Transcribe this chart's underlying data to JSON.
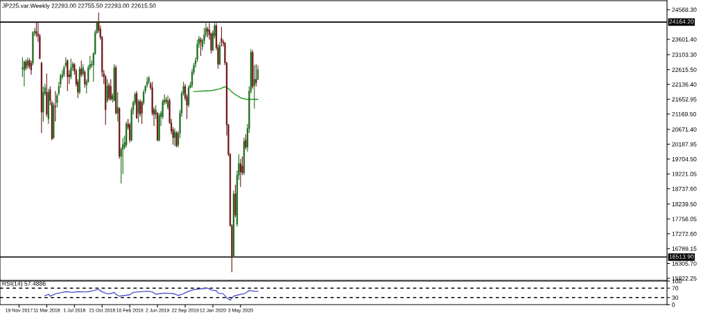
{
  "chart_data": [
    {
      "type": "candlestick",
      "title": "JP225.var.Weekly 22293.00 22755.50 22293.00 22615.50",
      "x": [
        "2017-12-03",
        "2017-12-10",
        "2017-12-17",
        "2017-12-24",
        "2017-12-31",
        "2018-01-07",
        "2018-01-14",
        "2018-01-21",
        "2018-01-28",
        "2018-02-04",
        "2018-02-11",
        "2018-02-18",
        "2018-02-25",
        "2018-03-04",
        "2018-03-11",
        "2018-03-18",
        "2018-03-25",
        "2018-04-01",
        "2018-04-08",
        "2018-04-15",
        "2018-04-22",
        "2018-04-29",
        "2018-05-06",
        "2018-05-13",
        "2018-05-20",
        "2018-05-27",
        "2018-06-03",
        "2018-06-10",
        "2018-06-17",
        "2018-06-24",
        "2018-07-01",
        "2018-07-08",
        "2018-07-15",
        "2018-07-22",
        "2018-07-29",
        "2018-08-05",
        "2018-08-12",
        "2018-08-19",
        "2018-08-26",
        "2018-09-02",
        "2018-09-09",
        "2018-09-16",
        "2018-09-23",
        "2018-09-30",
        "2018-10-07",
        "2018-10-14",
        "2018-10-21",
        "2018-10-28",
        "2018-11-04",
        "2018-11-11",
        "2018-11-18",
        "2018-11-25",
        "2018-12-02",
        "2018-12-09",
        "2018-12-16",
        "2018-12-23",
        "2018-12-30",
        "2019-01-06",
        "2019-01-13",
        "2019-01-20",
        "2019-01-27",
        "2019-02-03",
        "2019-02-10",
        "2019-02-17",
        "2019-02-24",
        "2019-03-03",
        "2019-03-10",
        "2019-03-17",
        "2019-03-24",
        "2019-03-31",
        "2019-04-07",
        "2019-04-14",
        "2019-04-21",
        "2019-04-28",
        "2019-05-05",
        "2019-05-12",
        "2019-05-19",
        "2019-05-26",
        "2019-06-02",
        "2019-06-09",
        "2019-06-16",
        "2019-06-23",
        "2019-06-30",
        "2019-07-07",
        "2019-07-14",
        "2019-07-21",
        "2019-07-28",
        "2019-08-04",
        "2019-08-11",
        "2019-08-18",
        "2019-08-25",
        "2019-09-01",
        "2019-09-08",
        "2019-09-15",
        "2019-09-22",
        "2019-09-29",
        "2019-10-06",
        "2019-10-13",
        "2019-10-20",
        "2019-10-27",
        "2019-11-03",
        "2019-11-10",
        "2019-11-17",
        "2019-11-24",
        "2019-12-01",
        "2019-12-08",
        "2019-12-15",
        "2019-12-22",
        "2019-12-29",
        "2020-01-05",
        "2020-01-12",
        "2020-01-19",
        "2020-01-26",
        "2020-02-02",
        "2020-02-09",
        "2020-02-16",
        "2020-02-23",
        "2020-03-01",
        "2020-03-08",
        "2020-03-15",
        "2020-03-22",
        "2020-03-29",
        "2020-04-05",
        "2020-04-12",
        "2020-04-19",
        "2020-04-26",
        "2020-05-03",
        "2020-05-10",
        "2020-05-17",
        "2020-05-24",
        "2020-05-31",
        "2020-06-07",
        "2020-06-14",
        "2020-06-21",
        "2020-06-28",
        "2020-07-05",
        "2020-07-12"
      ],
      "ohlc": [
        [
          22640,
          23020,
          22380,
          22680
        ],
        [
          22600,
          22910,
          22070,
          22870
        ],
        [
          22870,
          22950,
          22600,
          22680
        ],
        [
          22760,
          23020,
          22640,
          22910
        ],
        [
          22910,
          22980,
          22640,
          22720
        ],
        [
          22830,
          22910,
          22450,
          22600
        ],
        [
          22830,
          23860,
          22760,
          23820
        ],
        [
          23820,
          23970,
          23710,
          23860
        ],
        [
          23860,
          24160,
          23670,
          23780
        ],
        [
          23780,
          24160,
          23520,
          23710
        ],
        [
          23710,
          23780,
          22950,
          22980
        ],
        [
          22830,
          22870,
          20550,
          21230
        ],
        [
          21230,
          22070,
          20930,
          21880
        ],
        [
          21840,
          22150,
          21770,
          22030
        ],
        [
          21880,
          22490,
          21080,
          21160
        ],
        [
          21010,
          22000,
          20850,
          21880
        ],
        [
          21960,
          22070,
          21460,
          21610
        ],
        [
          21540,
          21610,
          20320,
          20360
        ],
        [
          20400,
          21540,
          20360,
          21460
        ],
        [
          21420,
          21920,
          20930,
          21400
        ],
        [
          21540,
          21840,
          21390,
          21770
        ],
        [
          21840,
          22220,
          21770,
          22070
        ],
        [
          22150,
          22490,
          22030,
          22410
        ],
        [
          22380,
          22600,
          22300,
          22450
        ],
        [
          22450,
          22760,
          22380,
          22680
        ],
        [
          22760,
          23020,
          22680,
          22830
        ],
        [
          22910,
          22950,
          21920,
          22380
        ],
        [
          22450,
          22600,
          22150,
          22380
        ],
        [
          22380,
          22980,
          22300,
          22680
        ],
        [
          22680,
          22870,
          22570,
          22790
        ],
        [
          22790,
          22830,
          22450,
          22570
        ],
        [
          22570,
          22640,
          22070,
          22150
        ],
        [
          22220,
          22300,
          21690,
          21880
        ],
        [
          21880,
          22720,
          21810,
          22640
        ],
        [
          22640,
          22910,
          22380,
          22450
        ],
        [
          22490,
          22790,
          22410,
          22680
        ],
        [
          22530,
          22600,
          22030,
          22150
        ],
        [
          22110,
          22300,
          21840,
          22220
        ],
        [
          22220,
          22760,
          22190,
          22680
        ],
        [
          22680,
          23060,
          22600,
          22790
        ],
        [
          22760,
          22910,
          22680,
          22790
        ],
        [
          22760,
          23180,
          22220,
          23140
        ],
        [
          23140,
          23900,
          23100,
          23820
        ],
        [
          23820,
          24200,
          23780,
          24160
        ],
        [
          24160,
          24470,
          23820,
          23900
        ],
        [
          23940,
          24050,
          23590,
          23670
        ],
        [
          23670,
          23710,
          22380,
          22530
        ],
        [
          22490,
          22600,
          22150,
          22380
        ],
        [
          22380,
          22450,
          20820,
          21310
        ],
        [
          21610,
          22300,
          21540,
          22070
        ],
        [
          22110,
          22190,
          21610,
          21690
        ],
        [
          22070,
          22300,
          21610,
          21650
        ],
        [
          21650,
          21840,
          21540,
          21770
        ],
        [
          21610,
          22790,
          21580,
          22680
        ],
        [
          22680,
          22760,
          21160,
          21200
        ],
        [
          21200,
          21880,
          20930,
          21390
        ],
        [
          21350,
          21390,
          19710,
          19790
        ],
        [
          19790,
          20090,
          18910,
          20020
        ],
        [
          20020,
          20400,
          19220,
          20170
        ],
        [
          20090,
          20470,
          20020,
          20240
        ],
        [
          20170,
          20930,
          20090,
          20850
        ],
        [
          20850,
          21010,
          20660,
          20740
        ],
        [
          20820,
          20890,
          20240,
          20320
        ],
        [
          20320,
          21390,
          20280,
          21310
        ],
        [
          21310,
          21610,
          21160,
          21540
        ],
        [
          21540,
          21880,
          21460,
          21810
        ],
        [
          21840,
          21920,
          21010,
          21040
        ],
        [
          21200,
          21650,
          20890,
          21580
        ],
        [
          21580,
          21650,
          21080,
          21160
        ],
        [
          21540,
          21610,
          20850,
          21200
        ],
        [
          21540,
          21960,
          21460,
          21880
        ],
        [
          21920,
          22110,
          21840,
          22070
        ],
        [
          22110,
          22380,
          22030,
          22220
        ],
        [
          22220,
          22410,
          22150,
          22340
        ],
        [
          22150,
          22220,
          21960,
          22030
        ],
        [
          22030,
          22220,
          21120,
          21200
        ],
        [
          21310,
          21390,
          20780,
          21160
        ],
        [
          21160,
          21460,
          21010,
          21310
        ],
        [
          21200,
          21230,
          20280,
          20320
        ],
        [
          20320,
          21200,
          20280,
          21120
        ],
        [
          21080,
          21270,
          20780,
          21200
        ],
        [
          21080,
          21650,
          21010,
          21580
        ],
        [
          21540,
          21810,
          21460,
          21630
        ],
        [
          21630,
          21730,
          21500,
          21580
        ],
        [
          21390,
          21770,
          21310,
          21610
        ],
        [
          21610,
          21690,
          20850,
          20890
        ],
        [
          20890,
          21010,
          20510,
          20620
        ],
        [
          20660,
          20740,
          20170,
          20400
        ],
        [
          20400,
          20700,
          20130,
          20590
        ],
        [
          20550,
          20620,
          20090,
          20130
        ],
        [
          20170,
          20620,
          20090,
          20550
        ],
        [
          20550,
          21310,
          20400,
          21200
        ],
        [
          21200,
          21920,
          21080,
          21840
        ],
        [
          21840,
          22220,
          21770,
          22070
        ],
        [
          22070,
          22150,
          21610,
          21690
        ],
        [
          21730,
          21810,
          21010,
          21460
        ],
        [
          21460,
          22110,
          21390,
          22030
        ],
        [
          22030,
          22220,
          22000,
          22110
        ],
        [
          22110,
          22640,
          22030,
          22530
        ],
        [
          22530,
          22830,
          22450,
          22760
        ],
        [
          22790,
          23020,
          22680,
          22910
        ],
        [
          22950,
          23590,
          22870,
          23440
        ],
        [
          23440,
          23710,
          23330,
          23630
        ],
        [
          23590,
          23670,
          23060,
          23520
        ],
        [
          23370,
          23630,
          23250,
          23560
        ],
        [
          23560,
          23970,
          23440,
          23750
        ],
        [
          23750,
          24130,
          23670,
          23970
        ],
        [
          23940,
          24010,
          23670,
          23860
        ],
        [
          23900,
          24130,
          23590,
          23750
        ],
        [
          23780,
          23820,
          23140,
          23250
        ],
        [
          23250,
          23900,
          23210,
          23820
        ],
        [
          23710,
          24130,
          23630,
          24050
        ],
        [
          24050,
          24130,
          23250,
          23330
        ],
        [
          23330,
          23440,
          22640,
          22790
        ],
        [
          22790,
          23520,
          22760,
          23400
        ],
        [
          23630,
          24010,
          23370,
          23520
        ],
        [
          23520,
          23590,
          23370,
          23480
        ],
        [
          23480,
          23520,
          22760,
          22830
        ],
        [
          22830,
          22870,
          20470,
          20820
        ],
        [
          20820,
          20850,
          19790,
          19860
        ],
        [
          19860,
          19900,
          17500,
          17540
        ],
        [
          17540,
          17580,
          16020,
          16550
        ],
        [
          16550,
          18680,
          16510,
          18570
        ],
        [
          18570,
          18870,
          17810,
          17880
        ],
        [
          17580,
          19330,
          17500,
          19180
        ],
        [
          19180,
          19860,
          19030,
          19560
        ],
        [
          19560,
          19710,
          18800,
          19290
        ],
        [
          19480,
          19790,
          19180,
          19250
        ],
        [
          19250,
          20400,
          19180,
          20280
        ],
        [
          20320,
          20510,
          20020,
          20090
        ],
        [
          20090,
          20850,
          19940,
          20700
        ],
        [
          20700,
          22070,
          20550,
          21920
        ],
        [
          21920,
          23290,
          21840,
          23180
        ],
        [
          23180,
          23250,
          22000,
          22070
        ],
        [
          22110,
          22760,
          21350,
          22300
        ],
        [
          22300,
          22790,
          22070,
          22190
        ],
        [
          22293,
          22755.5,
          22293,
          22615.5
        ]
      ],
      "colors": [
        "#1b6b1b",
        "#1b6b1b",
        "#6b1414",
        "#1b6b1b",
        "#6b1414",
        "#6b1414",
        "#1b6b1b",
        "#1b6b1b",
        "#6b1414",
        "#6b1414",
        "#6b1414",
        "#6b1414",
        "#1b6b1b",
        "#1b6b1b",
        "#6b1414",
        "#1b6b1b",
        "#6b1414",
        "#6b1414",
        "#1b6b1b",
        "#6b1414",
        "#1b6b1b",
        "#1b6b1b",
        "#1b6b1b",
        "#1b6b1b",
        "#1b6b1b",
        "#1b6b1b",
        "#6b1414",
        "#6b1414",
        "#1b6b1b",
        "#1b6b1b",
        "#6b1414",
        "#6b1414",
        "#6b1414",
        "#1b6b1b",
        "#6b1414",
        "#1b6b1b",
        "#6b1414",
        "#1b6b1b",
        "#1b6b1b",
        "#1b6b1b",
        "#1b6b1b",
        "#1b6b1b",
        "#1b6b1b",
        "#1b6b1b",
        "#6b1414",
        "#6b1414",
        "#6b1414",
        "#6b1414",
        "#6b1414",
        "#1b6b1b",
        "#6b1414",
        "#6b1414",
        "#1b6b1b",
        "#1b6b1b",
        "#6b1414",
        "#1b6b1b",
        "#6b1414",
        "#1b6b1b",
        "#1b6b1b",
        "#1b6b1b",
        "#1b6b1b",
        "#6b1414",
        "#6b1414",
        "#1b6b1b",
        "#1b6b1b",
        "#1b6b1b",
        "#6b1414",
        "#1b6b1b",
        "#6b1414",
        "#6b1414",
        "#1b6b1b",
        "#1b6b1b",
        "#1b6b1b",
        "#1b6b1b",
        "#6b1414",
        "#6b1414",
        "#6b1414",
        "#1b6b1b",
        "#6b1414",
        "#1b6b1b",
        "#1b6b1b",
        "#1b6b1b",
        "#1b6b1b",
        "#6b1414",
        "#1b6b1b",
        "#6b1414",
        "#6b1414",
        "#6b1414",
        "#1b6b1b",
        "#6b1414",
        "#1b6b1b",
        "#1b6b1b",
        "#1b6b1b",
        "#1b6b1b",
        "#6b1414",
        "#6b1414",
        "#1b6b1b",
        "#1b6b1b",
        "#1b6b1b",
        "#1b6b1b",
        "#1b6b1b",
        "#1b6b1b",
        "#1b6b1b",
        "#6b1414",
        "#1b6b1b",
        "#1b6b1b",
        "#1b6b1b",
        "#6b1414",
        "#6b1414",
        "#6b1414",
        "#1b6b1b",
        "#1b6b1b",
        "#6b1414",
        "#6b1414",
        "#1b6b1b",
        "#6b1414",
        "#6b1414",
        "#6b1414",
        "#6b1414",
        "#6b1414",
        "#6b1414",
        "#6b1414",
        "#1b6b1b",
        "#6b1414",
        "#1b6b1b",
        "#1b6b1b",
        "#6b1414",
        "#6b1414",
        "#1b6b1b",
        "#6b1414",
        "#1b6b1b",
        "#1b6b1b",
        "#1b6b1b",
        "#6b1414",
        "#1b6b1b",
        "#6b1414",
        "#1b6b1b"
      ],
      "series": [
        {
          "type": "line",
          "color": "#1e9a1e",
          "x": [
            "2019-10-27",
            "2019-12-01",
            "2020-01-05",
            "2020-02-09",
            "2020-03-01",
            "2020-03-15",
            "2020-04-05",
            "2020-05-03",
            "2020-05-24",
            "2020-07-12"
          ],
          "values": [
            21900,
            21920,
            21930,
            21990,
            22060,
            22000,
            21840,
            21700,
            21650,
            21650
          ]
        }
      ],
      "xlim": [
        "2017-09-03",
        "2025-01-22"
      ],
      "ylim": [
        15755,
        24860
      ],
      "yticks": [
        {
          "value": 24568.3,
          "label": "24568.30"
        },
        {
          "value": 23601.4,
          "label": "23601.40"
        },
        {
          "value": 23103.3,
          "label": "23103.30"
        },
        {
          "value": 22615.5,
          "label": "22615.50"
        },
        {
          "value": 22136.4,
          "label": "22136.40"
        },
        {
          "value": 21652.95,
          "label": "21652.95"
        },
        {
          "value": 21169.5,
          "label": "21169.50"
        },
        {
          "value": 20671.4,
          "label": "20671.40"
        },
        {
          "value": 20187.95,
          "label": "20187.95"
        },
        {
          "value": 19704.5,
          "label": "19704.50"
        },
        {
          "value": 19221.05,
          "label": "19221.05"
        },
        {
          "value": 18737.6,
          "label": "18737.60"
        },
        {
          "value": 18239.5,
          "label": "18239.50"
        },
        {
          "value": 17756.05,
          "label": "17756.05"
        },
        {
          "value": 17272.6,
          "label": "17272.60"
        },
        {
          "value": 16789.15,
          "label": "16789.15"
        },
        {
          "value": 16305.7,
          "label": "16305.70"
        },
        {
          "value": 15822.25,
          "label": "15822.25"
        }
      ],
      "ref_lines": [
        {
          "axis": "y",
          "value": 24164.2,
          "label": "24164.20",
          "color": "#000000"
        },
        {
          "axis": "y",
          "value": 16513.9,
          "label": "16513.90",
          "color": "#000000"
        }
      ],
      "tick_labels": "y"
    },
    {
      "type": "line",
      "title": "RSI(14) 57.4886",
      "x": [
        "2018-03-04",
        "2018-03-18",
        "2018-03-25",
        "2018-04-15",
        "2018-05-13",
        "2018-05-27",
        "2018-06-24",
        "2018-07-15",
        "2018-08-12",
        "2018-08-26",
        "2018-09-16",
        "2018-10-07",
        "2018-10-21",
        "2018-11-11",
        "2018-11-25",
        "2018-12-09",
        "2018-12-16",
        "2018-12-30",
        "2019-01-20",
        "2019-02-10",
        "2019-02-24",
        "2019-03-17",
        "2019-04-21",
        "2019-05-12",
        "2019-05-26",
        "2019-06-16",
        "2019-06-30",
        "2019-08-04",
        "2019-08-25",
        "2019-09-15",
        "2019-09-29",
        "2019-10-27",
        "2019-11-24",
        "2019-12-22",
        "2020-01-05",
        "2020-01-26",
        "2020-02-02",
        "2020-02-23",
        "2020-03-08",
        "2020-03-22",
        "2020-04-05",
        "2020-04-26",
        "2020-05-17",
        "2020-05-24",
        "2020-06-07",
        "2020-06-28",
        "2020-07-12"
      ],
      "series": [
        {
          "color": "#5555cc",
          "values": [
            38,
            44,
            36,
            46,
            52,
            55,
            52,
            55,
            54,
            55,
            59,
            65,
            54,
            46,
            47,
            52,
            44,
            36,
            39,
            42,
            52,
            54,
            57,
            54,
            44,
            47,
            49,
            47,
            39,
            46,
            54,
            64,
            67,
            70,
            62,
            59,
            49,
            46,
            29,
            19,
            36,
            42,
            46,
            50,
            60,
            57,
            57
          ]
        }
      ],
      "xlim": [
        "2017-09-03",
        "2025-01-22"
      ],
      "xticks": [
        {
          "value": "2017-11-19",
          "label": "19 Nov 2017"
        },
        {
          "value": "2018-03-11",
          "label": "11 Mar 2018"
        },
        {
          "value": "2018-07-01",
          "label": "1 Jul 2018"
        },
        {
          "value": "2018-10-21",
          "label": "21 Oct 2018"
        },
        {
          "value": "2019-02-10",
          "label": "10 Feb 2019"
        },
        {
          "value": "2019-06-02",
          "label": "2 Jun 2019"
        },
        {
          "value": "2019-09-22",
          "label": "22 Sep 2019"
        },
        {
          "value": "2020-01-12",
          "label": "12 Jan 2020"
        },
        {
          "value": "2020-05-03",
          "label": "3 May 2020"
        }
      ],
      "ylim": [
        0,
        100
      ],
      "yticks": [
        0,
        30,
        70,
        100
      ],
      "ref_lines": [
        {
          "axis": "y",
          "value": 70,
          "color": "#000000",
          "line_style": "dashed"
        },
        {
          "axis": "y",
          "value": 30,
          "color": "#000000",
          "line_style": "dashed"
        }
      ]
    }
  ]
}
